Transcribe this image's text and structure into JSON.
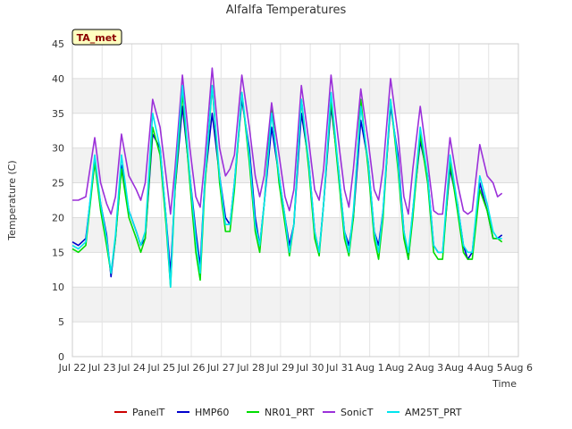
{
  "chart_data": {
    "type": "line",
    "title": "Alfalfa Temperatures",
    "xlabel": "Time",
    "ylabel": "Temperature (C)",
    "badge": "TA_met",
    "ylim": [
      0,
      45
    ],
    "yticks": [
      0,
      5,
      10,
      15,
      20,
      25,
      30,
      35,
      40,
      45
    ],
    "xlim": [
      0,
      15
    ],
    "xticks": [
      {
        "x": 0,
        "label": "Jul 22"
      },
      {
        "x": 1,
        "label": "Jul 23"
      },
      {
        "x": 2,
        "label": "Jul 24"
      },
      {
        "x": 3,
        "label": "Jul 25"
      },
      {
        "x": 4,
        "label": "Jul 26"
      },
      {
        "x": 5,
        "label": "Jul 27"
      },
      {
        "x": 6,
        "label": "Jul 28"
      },
      {
        "x": 7,
        "label": "Jul 29"
      },
      {
        "x": 8,
        "label": "Jul 30"
      },
      {
        "x": 9,
        "label": "Jul 31"
      },
      {
        "x": 10,
        "label": "Aug 1"
      },
      {
        "x": 11,
        "label": "Aug 2"
      },
      {
        "x": 12,
        "label": "Aug 3"
      },
      {
        "x": 13,
        "label": "Aug 4"
      },
      {
        "x": 14,
        "label": "Aug 5"
      },
      {
        "x": 15,
        "label": "Aug 6"
      }
    ],
    "grid": true,
    "legend_position": "bottom",
    "series": [
      {
        "name": "PanelT",
        "color": "#cc0000",
        "x": [],
        "values": []
      },
      {
        "name": "HMP60",
        "color": "#0000cc",
        "x": [
          0.0,
          0.2,
          0.45,
          0.75,
          0.95,
          1.15,
          1.3,
          1.45,
          1.65,
          1.9,
          2.15,
          2.3,
          2.45,
          2.7,
          2.95,
          3.15,
          3.3,
          3.45,
          3.7,
          3.95,
          4.15,
          4.3,
          4.45,
          4.7,
          4.95,
          5.15,
          5.3,
          5.45,
          5.7,
          5.95,
          6.15,
          6.3,
          6.45,
          6.7,
          6.95,
          7.15,
          7.3,
          7.45,
          7.7,
          7.95,
          8.15,
          8.3,
          8.45,
          8.7,
          8.95,
          9.15,
          9.3,
          9.45,
          9.7,
          9.95,
          10.15,
          10.3,
          10.45,
          10.7,
          10.95,
          11.15,
          11.3,
          11.45,
          11.7,
          11.95,
          12.15,
          12.3,
          12.45,
          12.7,
          12.95,
          13.15,
          13.3,
          13.45,
          13.7,
          13.95,
          14.15,
          14.3,
          14.45
        ],
        "values": [
          16.5,
          16,
          17,
          28,
          22,
          17.5,
          11.5,
          17,
          27.5,
          21,
          18,
          16,
          17,
          32,
          30,
          20,
          12,
          24,
          36,
          26,
          18,
          13,
          25,
          35,
          26,
          20,
          19,
          25,
          37,
          30,
          20,
          16,
          22,
          33,
          26,
          20,
          16,
          19,
          35,
          28,
          18,
          15,
          22,
          36,
          27,
          18,
          16,
          20,
          34,
          28,
          18,
          16,
          21,
          36,
          29,
          18,
          14,
          21,
          31,
          26,
          16,
          15,
          15,
          27,
          22,
          16,
          14,
          15,
          25,
          21,
          17,
          17,
          17.5
        ]
      },
      {
        "name": "NR01_PRT",
        "color": "#00dd00",
        "x": [
          0.0,
          0.2,
          0.45,
          0.75,
          0.95,
          1.15,
          1.3,
          1.45,
          1.65,
          1.9,
          2.15,
          2.3,
          2.45,
          2.7,
          2.95,
          3.15,
          3.3,
          3.45,
          3.7,
          3.95,
          4.15,
          4.3,
          4.45,
          4.7,
          4.95,
          5.15,
          5.3,
          5.45,
          5.7,
          5.95,
          6.15,
          6.3,
          6.45,
          6.7,
          6.95,
          7.15,
          7.3,
          7.45,
          7.7,
          7.95,
          8.15,
          8.3,
          8.45,
          8.7,
          8.95,
          9.15,
          9.3,
          9.45,
          9.7,
          9.95,
          10.15,
          10.3,
          10.45,
          10.7,
          10.95,
          11.15,
          11.3,
          11.45,
          11.7,
          11.95,
          12.15,
          12.3,
          12.45,
          12.7,
          12.95,
          13.15,
          13.3,
          13.45,
          13.7,
          13.95,
          14.15,
          14.3,
          14.45
        ],
        "values": [
          15.5,
          15,
          16,
          28,
          21,
          16,
          12,
          17,
          27,
          20,
          17,
          15,
          17,
          33,
          29,
          19,
          10,
          24,
          38,
          25,
          15,
          11,
          24,
          39,
          25,
          18,
          18,
          24,
          38,
          28,
          18,
          15,
          22,
          36,
          25,
          19,
          14.5,
          19,
          37,
          27,
          17,
          14.5,
          22,
          37,
          26,
          17,
          14.5,
          20,
          37,
          27,
          17,
          14,
          20,
          37,
          27,
          17,
          14,
          20,
          32,
          25,
          15,
          14,
          14,
          28,
          21,
          15,
          14,
          14,
          24,
          21,
          17,
          17,
          16.5
        ]
      },
      {
        "name": "SonicT",
        "color": "#9b30d9",
        "x": [
          0.0,
          0.2,
          0.45,
          0.75,
          0.95,
          1.15,
          1.3,
          1.45,
          1.65,
          1.9,
          2.15,
          2.3,
          2.45,
          2.7,
          2.95,
          3.15,
          3.3,
          3.45,
          3.7,
          3.95,
          4.15,
          4.3,
          4.45,
          4.7,
          4.95,
          5.15,
          5.3,
          5.45,
          5.7,
          5.95,
          6.15,
          6.3,
          6.45,
          6.7,
          6.95,
          7.15,
          7.3,
          7.45,
          7.7,
          7.95,
          8.15,
          8.3,
          8.45,
          8.7,
          8.95,
          9.15,
          9.3,
          9.45,
          9.7,
          9.95,
          10.15,
          10.3,
          10.45,
          10.7,
          10.95,
          11.15,
          11.3,
          11.45,
          11.7,
          11.95,
          12.15,
          12.3,
          12.45,
          12.7,
          12.95,
          13.15,
          13.3,
          13.45,
          13.7,
          13.95,
          14.15,
          14.3,
          14.45
        ],
        "values": [
          22.5,
          22.5,
          23,
          31.5,
          25,
          22,
          20.5,
          23,
          32,
          26,
          24,
          22.5,
          25,
          37,
          33,
          26,
          20.5,
          27,
          40.5,
          30,
          23,
          21.5,
          28,
          41.5,
          30,
          26,
          27,
          29,
          40.5,
          33,
          26,
          23,
          26,
          36.5,
          29,
          23,
          21,
          24,
          39,
          31,
          24,
          22.5,
          27,
          40.5,
          31,
          24,
          21.5,
          27,
          38.5,
          31,
          24,
          22.5,
          27,
          40,
          32,
          23,
          20.5,
          27,
          36,
          28,
          21,
          20.5,
          20.5,
          31.5,
          25,
          21,
          20.5,
          21,
          30.5,
          26,
          25,
          23,
          23.5
        ]
      },
      {
        "name": "AM25T_PRT",
        "color": "#00e5ee",
        "x": [
          0.0,
          0.2,
          0.45,
          0.75,
          0.95,
          1.15,
          1.3,
          1.45,
          1.65,
          1.9,
          2.15,
          2.3,
          2.45,
          2.7,
          2.95,
          3.15,
          3.3,
          3.45,
          3.7,
          3.95,
          4.15,
          4.3,
          4.45,
          4.7,
          4.95,
          5.15,
          5.3,
          5.45,
          5.7,
          5.95,
          6.15,
          6.3,
          6.45,
          6.7,
          6.95,
          7.15,
          7.3,
          7.45,
          7.7,
          7.95,
          8.15,
          8.3,
          8.45,
          8.7,
          8.95,
          9.15,
          9.3,
          9.45,
          9.7,
          9.95,
          10.15,
          10.3,
          10.45,
          10.7,
          10.95,
          11.15,
          11.3,
          11.45,
          11.7,
          11.95,
          12.15,
          12.3,
          12.45,
          12.7,
          12.95,
          13.15,
          13.3,
          13.45,
          13.7,
          13.95,
          14.15,
          14.3,
          14.45
        ],
        "values": [
          16,
          15.5,
          16.5,
          29,
          22,
          17,
          12,
          17.5,
          29,
          21,
          18,
          16,
          18,
          35,
          30,
          20,
          10,
          25,
          39,
          26,
          17,
          12,
          25,
          39,
          26,
          19,
          19,
          25,
          38,
          29,
          19,
          16,
          22,
          35,
          26,
          20,
          15,
          19,
          37,
          28,
          18,
          15,
          22,
          38,
          27,
          18,
          15,
          21,
          36,
          28,
          18,
          15,
          21,
          37,
          28,
          18,
          15,
          21,
          33,
          26,
          16,
          15,
          15,
          29,
          22,
          16,
          15,
          15,
          26,
          22,
          18,
          17,
          17
        ]
      }
    ]
  }
}
